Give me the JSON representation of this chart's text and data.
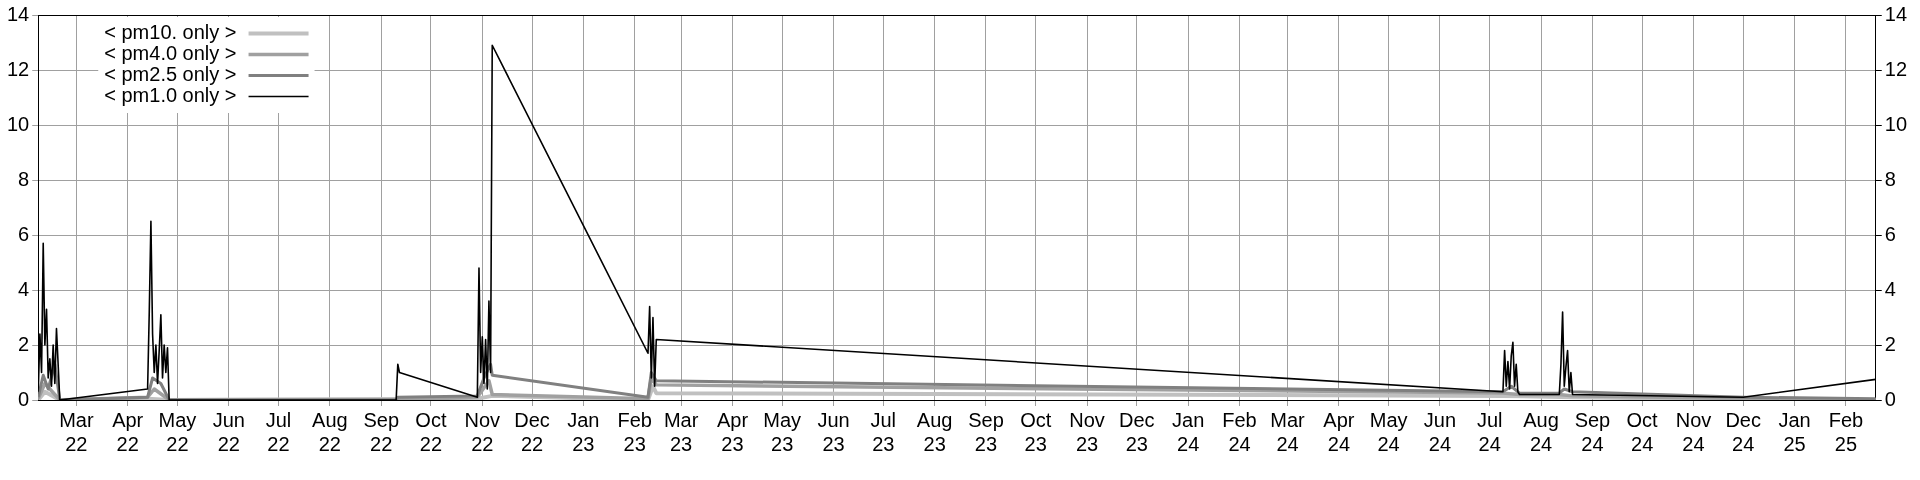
{
  "chart_data": {
    "type": "line",
    "xlim": [
      "2022-02-06",
      "2025-02-19"
    ],
    "xticks": [
      {
        "value": "2022-03-01",
        "label": "Mar 22"
      },
      {
        "value": "2022-04-01",
        "label": "Apr 22"
      },
      {
        "value": "2022-05-01",
        "label": "May 22"
      },
      {
        "value": "2022-06-01",
        "label": "Jun 22"
      },
      {
        "value": "2022-07-01",
        "label": "Jul 22"
      },
      {
        "value": "2022-08-01",
        "label": "Aug 22"
      },
      {
        "value": "2022-09-01",
        "label": "Sep 22"
      },
      {
        "value": "2022-10-01",
        "label": "Oct 22"
      },
      {
        "value": "2022-11-01",
        "label": "Nov 22"
      },
      {
        "value": "2022-12-01",
        "label": "Dec 22"
      },
      {
        "value": "2023-01-01",
        "label": "Jan 23"
      },
      {
        "value": "2023-02-01",
        "label": "Feb 23"
      },
      {
        "value": "2023-03-01",
        "label": "Mar 23"
      },
      {
        "value": "2023-04-01",
        "label": "Apr 23"
      },
      {
        "value": "2023-05-01",
        "label": "May 23"
      },
      {
        "value": "2023-06-01",
        "label": "Jun 23"
      },
      {
        "value": "2023-07-01",
        "label": "Jul 23"
      },
      {
        "value": "2023-08-01",
        "label": "Aug 23"
      },
      {
        "value": "2023-09-01",
        "label": "Sep 23"
      },
      {
        "value": "2023-10-01",
        "label": "Oct 23"
      },
      {
        "value": "2023-11-01",
        "label": "Nov 23"
      },
      {
        "value": "2023-12-01",
        "label": "Dec 23"
      },
      {
        "value": "2024-01-01",
        "label": "Jan 24"
      },
      {
        "value": "2024-02-01",
        "label": "Feb 24"
      },
      {
        "value": "2024-03-01",
        "label": "Mar 24"
      },
      {
        "value": "2024-04-01",
        "label": "Apr 24"
      },
      {
        "value": "2024-05-01",
        "label": "May 24"
      },
      {
        "value": "2024-06-01",
        "label": "Jun 24"
      },
      {
        "value": "2024-07-01",
        "label": "Jul 24"
      },
      {
        "value": "2024-08-01",
        "label": "Aug 24"
      },
      {
        "value": "2024-09-01",
        "label": "Sep 24"
      },
      {
        "value": "2024-10-01",
        "label": "Oct 24"
      },
      {
        "value": "2024-11-01",
        "label": "Nov 24"
      },
      {
        "value": "2024-12-01",
        "label": "Dec 24"
      },
      {
        "value": "2025-01-01",
        "label": "Jan 25"
      },
      {
        "value": "2025-02-01",
        "label": "Feb 25"
      }
    ],
    "ylim": [
      0,
      14
    ],
    "yticks": [
      0,
      2,
      4,
      6,
      8,
      10,
      12,
      14
    ],
    "y2lim": [
      0,
      14
    ],
    "y2ticks": [
      0,
      2,
      4,
      6,
      8,
      10,
      12,
      14
    ],
    "grid": true,
    "legend": "top left",
    "marker": "none",
    "line_style": "solid",
    "series": [
      {
        "name": "< pm10. only >",
        "color": "#c0c0c0",
        "x": [
          "2022-02-06",
          "2022-02-10",
          "2022-02-19",
          "2022-04-13",
          "2022-04-26",
          "2022-10-29",
          "2022-11-07",
          "2023-02-09",
          "2023-02-12",
          "2023-02-14",
          "2024-07-09",
          "2024-08-20",
          "2024-12-01",
          "2025-02-19"
        ],
        "values": [
          0,
          0.3,
          0,
          0.05,
          0,
          0.05,
          0.15,
          0,
          0.5,
          0.25,
          0.15,
          0.1,
          0.02,
          0
        ]
      },
      {
        "name": "< pm4.0 only >",
        "color": "#a0a0a0",
        "x": [
          "2022-02-06",
          "2022-02-10",
          "2022-02-19",
          "2022-04-13",
          "2022-04-17",
          "2022-04-26",
          "2022-09-10",
          "2022-10-29",
          "2022-11-05",
          "2022-11-07",
          "2023-02-09",
          "2023-02-11",
          "2023-02-14",
          "2024-07-09",
          "2024-07-19",
          "2024-08-12",
          "2024-08-20",
          "2024-12-01",
          "2025-02-19"
        ],
        "values": [
          0.05,
          0.6,
          0,
          0.1,
          0.4,
          0,
          0,
          0.1,
          0.7,
          0.2,
          0.05,
          0.8,
          0.55,
          0.25,
          0.2,
          0.2,
          0.15,
          0.05,
          0
        ]
      },
      {
        "name": "< pm2.5 only >",
        "color": "#808080",
        "x": [
          "2022-02-06",
          "2022-02-09",
          "2022-02-12",
          "2022-02-16",
          "2022-02-19",
          "2022-04-13",
          "2022-04-16",
          "2022-04-21",
          "2022-04-26",
          "2022-09-10",
          "2022-09-11",
          "2022-10-29",
          "2022-11-02",
          "2022-11-06",
          "2022-11-07",
          "2023-02-09",
          "2023-02-11",
          "2023-02-14",
          "2024-07-09",
          "2024-07-14",
          "2024-07-19",
          "2024-08-12",
          "2024-08-15",
          "2024-08-20",
          "2024-12-01",
          "2025-02-19"
        ],
        "values": [
          0.1,
          0.9,
          0.4,
          1.3,
          0,
          0.1,
          0.8,
          0.6,
          0,
          0,
          0.1,
          0.15,
          0.8,
          1.3,
          0.9,
          0.1,
          1,
          0.7,
          0.3,
          0.5,
          0.25,
          0.25,
          0.4,
          0.3,
          0.1,
          0.05
        ]
      },
      {
        "name": "< pm1.0 only >",
        "color": "#000000",
        "x": [
          "2022-02-06",
          "2022-02-07",
          "2022-02-08",
          "2022-02-09",
          "2022-02-10",
          "2022-02-11",
          "2022-02-12",
          "2022-02-13",
          "2022-02-14",
          "2022-02-15",
          "2022-02-16",
          "2022-02-17",
          "2022-02-18",
          "2022-02-19",
          "2022-04-13",
          "2022-04-14",
          "2022-04-15",
          "2022-04-16",
          "2022-04-17",
          "2022-04-18",
          "2022-04-19",
          "2022-04-20",
          "2022-04-21",
          "2022-04-22",
          "2022-04-23",
          "2022-04-24",
          "2022-04-25",
          "2022-04-26",
          "2022-09-10",
          "2022-09-11",
          "2022-09-12",
          "2022-10-29",
          "2022-10-30",
          "2022-10-31",
          "2022-11-01",
          "2022-11-02",
          "2022-11-03",
          "2022-11-04",
          "2022-11-05",
          "2022-11-06",
          "2022-11-07",
          "2023-02-09",
          "2023-02-10",
          "2023-02-11",
          "2023-02-12",
          "2023-02-13",
          "2023-02-14",
          "2024-07-09",
          "2024-07-10",
          "2024-07-11",
          "2024-07-12",
          "2024-07-13",
          "2024-07-14",
          "2024-07-15",
          "2024-07-16",
          "2024-07-17",
          "2024-07-18",
          "2024-07-19",
          "2024-08-12",
          "2024-08-13",
          "2024-08-14",
          "2024-08-15",
          "2024-08-16",
          "2024-08-17",
          "2024-08-18",
          "2024-08-19",
          "2024-08-20",
          "2024-12-01",
          "2025-02-19"
        ],
        "values": [
          0.3,
          2.4,
          1,
          5.7,
          2,
          3.3,
          0.8,
          1.5,
          0.5,
          2,
          0.6,
          2.6,
          1.3,
          0,
          0.4,
          3.2,
          6.5,
          2.4,
          1,
          2,
          0.6,
          1.8,
          3.1,
          0.8,
          2,
          1,
          1.9,
          0,
          0,
          1.3,
          1,
          0.1,
          4.8,
          1,
          2.3,
          0.6,
          2.2,
          0.4,
          3.6,
          1,
          12.9,
          1.7,
          3.4,
          0.8,
          3,
          0.5,
          2.2,
          0.3,
          1.8,
          0.5,
          1.4,
          0.4,
          1.6,
          2.1,
          0.5,
          1.3,
          0.3,
          0.2,
          0.2,
          1.3,
          3.2,
          0.5,
          1.2,
          1.8,
          0.3,
          1,
          0.2,
          0.1,
          0.75
        ]
      }
    ]
  }
}
